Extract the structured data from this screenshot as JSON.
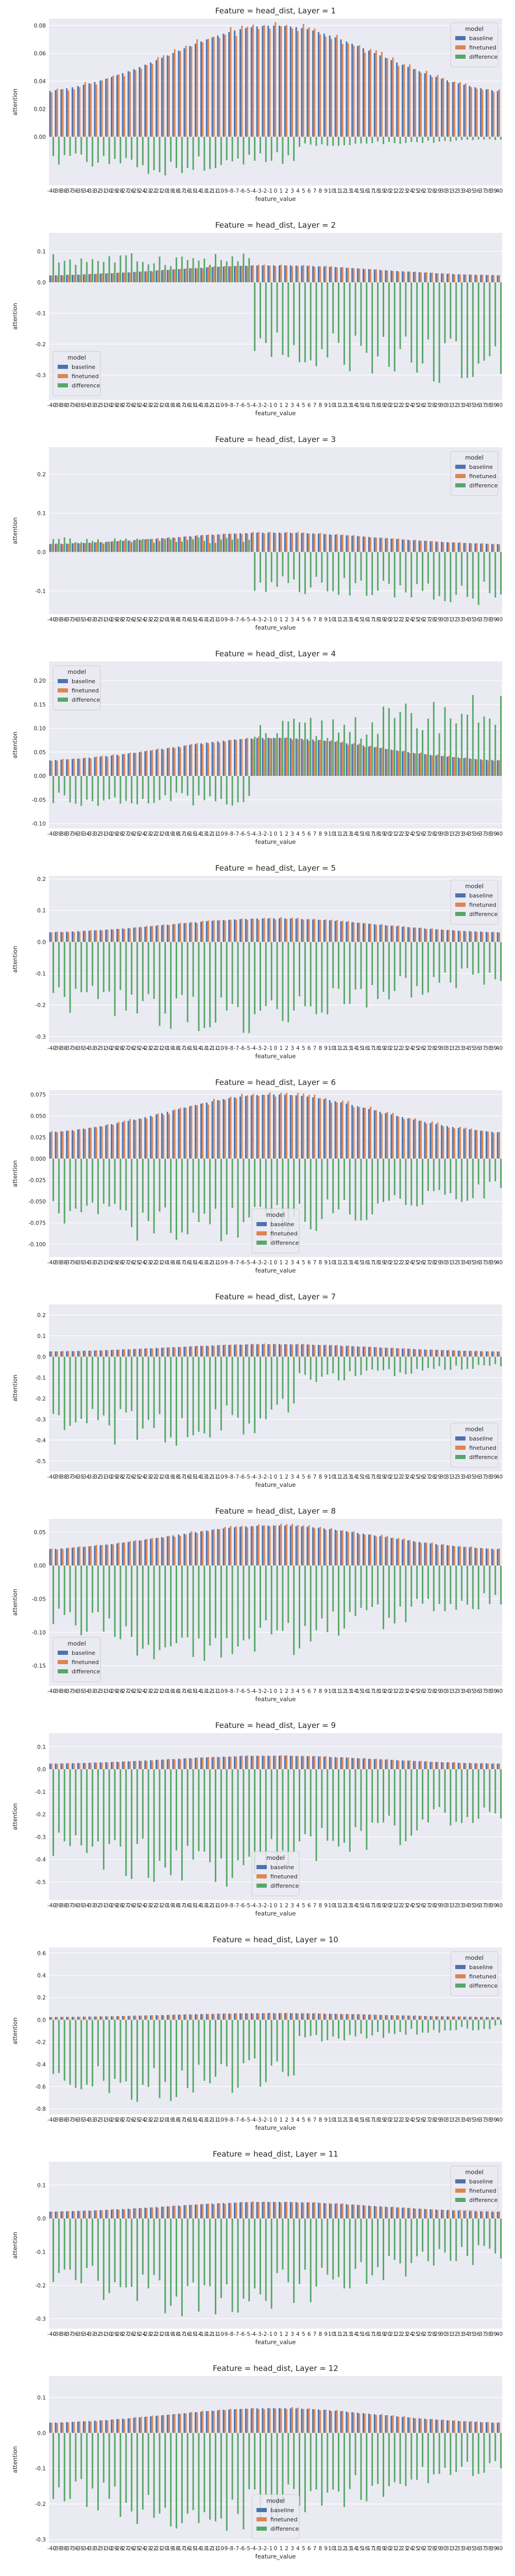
{
  "colors": {
    "background": "#eaeaf2",
    "grid": "#ffffff",
    "baseline": "#4c72b0",
    "finetuned": "#dd8452",
    "difference": "#55a868"
  },
  "chart_data": [
    {
      "type": "bar",
      "title": "Feature = head_dist, Layer = 1",
      "xlabel": "feature_value",
      "ylabel": "attention",
      "ylim": [
        -0.035,
        0.085
      ],
      "yticks": [
        0.0,
        0.02,
        0.04,
        0.06,
        0.08
      ],
      "ytick_labels": [
        "0.00",
        "0.02",
        "0.04",
        "0.06",
        "0.08"
      ],
      "legend_loc": "upper right",
      "peak": 0.08,
      "dip": -0.028,
      "diff_pattern": "negleft"
    },
    {
      "type": "bar",
      "title": "Feature = head_dist, Layer = 2",
      "xlabel": "feature_value",
      "ylabel": "attention",
      "ylim": [
        -0.38,
        0.16
      ],
      "yticks": [
        -0.3,
        -0.2,
        -0.1,
        0.0,
        0.1
      ],
      "ytick_labels": [
        "-0.3",
        "-0.2",
        "-0.1",
        "0.0",
        "0.1"
      ],
      "legend_loc": "lower left",
      "peak": 0.055,
      "dip": -0.35,
      "diff_pattern": "posleft_negright"
    },
    {
      "type": "bar",
      "title": "Feature = head_dist, Layer = 3",
      "xlabel": "feature_value",
      "ylabel": "attention",
      "ylim": [
        -0.16,
        0.27
      ],
      "yticks": [
        -0.1,
        0.0,
        0.1,
        0.2
      ],
      "ytick_labels": [
        "-0.1",
        "0.0",
        "0.1",
        "0.2"
      ],
      "legend_loc": "upper right",
      "peak": 0.05,
      "dip": -0.14,
      "diff_pattern": "posleft_negright"
    },
    {
      "type": "bar",
      "title": "Feature = head_dist, Layer = 4",
      "xlabel": "feature_value",
      "ylabel": "attention",
      "ylim": [
        -0.11,
        0.24
      ],
      "yticks": [
        -0.1,
        -0.05,
        0.0,
        0.05,
        0.1,
        0.15,
        0.2
      ],
      "ytick_labels": [
        "-0.10",
        "-0.05",
        "0.00",
        "0.05",
        "0.10",
        "0.15",
        "0.20"
      ],
      "legend_loc": "upper left",
      "peak": 0.08,
      "dip": -0.09,
      "diff_pattern": "negleft_posright"
    },
    {
      "type": "bar",
      "title": "Feature = head_dist, Layer = 5",
      "xlabel": "feature_value",
      "ylabel": "attention",
      "ylim": [
        -0.32,
        0.21
      ],
      "yticks": [
        -0.3,
        -0.2,
        -0.1,
        0.0,
        0.1,
        0.2
      ],
      "ytick_labels": [
        "-0.3",
        "-0.2",
        "-0.1",
        "0.0",
        "0.1",
        "0.2"
      ],
      "legend_loc": "upper right",
      "peak": 0.075,
      "dip": -0.3,
      "diff_pattern": "negall"
    },
    {
      "type": "bar",
      "title": "Feature = head_dist, Layer = 6",
      "xlabel": "feature_value",
      "ylabel": "attention",
      "ylim": [
        -0.115,
        0.08
      ],
      "yticks": [
        -0.1,
        -0.075,
        -0.05,
        -0.025,
        0.0,
        0.025,
        0.05,
        0.075
      ],
      "ytick_labels": [
        "-0.100",
        "-0.075",
        "-0.050",
        "-0.025",
        "0.000",
        "0.025",
        "0.050",
        "0.075"
      ],
      "legend_loc": "lower center",
      "peak": 0.075,
      "dip": -0.105,
      "diff_pattern": "negall"
    },
    {
      "type": "bar",
      "title": "Feature = head_dist, Layer = 7",
      "xlabel": "feature_value",
      "ylabel": "attention",
      "ylim": [
        -0.55,
        0.25
      ],
      "yticks": [
        -0.5,
        -0.4,
        -0.3,
        -0.2,
        -0.1,
        0.0,
        0.1,
        0.2
      ],
      "ytick_labels": [
        "-0.5",
        "-0.4",
        "-0.3",
        "-0.2",
        "-0.1",
        "0.0",
        "0.1",
        "0.2"
      ],
      "legend_loc": "lower right",
      "peak": 0.06,
      "dip": -0.5,
      "diff_pattern": "negleft"
    },
    {
      "type": "bar",
      "title": "Feature = head_dist, Layer = 8",
      "xlabel": "feature_value",
      "ylabel": "attention",
      "ylim": [
        -0.18,
        0.07
      ],
      "yticks": [
        -0.15,
        -0.1,
        -0.05,
        0.0,
        0.05
      ],
      "ytick_labels": [
        "-0.15",
        "-0.10",
        "-0.05",
        "0.00",
        "0.05"
      ],
      "legend_loc": "lower left",
      "peak": 0.06,
      "dip": -0.15,
      "diff_pattern": "negall"
    },
    {
      "type": "bar",
      "title": "Feature = head_dist, Layer = 9",
      "xlabel": "feature_value",
      "ylabel": "attention",
      "ylim": [
        -0.58,
        0.16
      ],
      "yticks": [
        -0.5,
        -0.4,
        -0.3,
        -0.2,
        -0.1,
        0.0,
        0.1
      ],
      "ytick_labels": [
        "-0.5",
        "-0.4",
        "-0.3",
        "-0.2",
        "-0.1",
        "0.0",
        "0.1"
      ],
      "legend_loc": "lower center",
      "peak": 0.06,
      "dip": -0.55,
      "diff_pattern": "negall"
    },
    {
      "type": "bar",
      "title": "Feature = head_dist, Layer = 10",
      "xlabel": "feature_value",
      "ylabel": "attention",
      "ylim": [
        -0.85,
        0.65
      ],
      "yticks": [
        -0.8,
        -0.6,
        -0.4,
        -0.2,
        0.0,
        0.2,
        0.4,
        0.6
      ],
      "ytick_labels": [
        "-0.8",
        "-0.6",
        "-0.4",
        "-0.2",
        "0.0",
        "0.2",
        "0.4",
        "0.6"
      ],
      "legend_loc": "upper right",
      "peak": 0.06,
      "dip": -0.8,
      "diff_pattern": "negleft"
    },
    {
      "type": "bar",
      "title": "Feature = head_dist, Layer = 11",
      "xlabel": "feature_value",
      "ylabel": "attention",
      "ylim": [
        -0.33,
        0.17
      ],
      "yticks": [
        -0.3,
        -0.2,
        -0.1,
        0.0,
        0.1
      ],
      "ytick_labels": [
        "-0.3",
        "-0.2",
        "-0.1",
        "0.0",
        "0.1"
      ],
      "legend_loc": "upper right",
      "peak": 0.05,
      "dip": -0.3,
      "diff_pattern": "negall"
    },
    {
      "type": "bar",
      "title": "Feature = head_dist, Layer = 12",
      "xlabel": "feature_value",
      "ylabel": "attention",
      "ylim": [
        -0.31,
        0.16
      ],
      "yticks": [
        -0.3,
        -0.2,
        -0.1,
        0.0,
        0.1
      ],
      "ytick_labels": [
        "-0.3",
        "-0.2",
        "-0.1",
        "0.0",
        "0.1"
      ],
      "legend_loc": "lower center",
      "peak": 0.07,
      "dip": -0.28,
      "diff_pattern": "negall"
    }
  ],
  "categories": [
    "-40",
    "-39",
    "-38",
    "-37",
    "-36",
    "-35",
    "-34",
    "-33",
    "-32",
    "-31",
    "-30",
    "-29",
    "-28",
    "-27",
    "-26",
    "-25",
    "-24",
    "-23",
    "-22",
    "-21",
    "-20",
    "-19",
    "-18",
    "-17",
    "-16",
    "-15",
    "-14",
    "-13",
    "-12",
    "-11",
    "-10",
    "-9",
    "-8",
    "-7",
    "-6",
    "-5",
    "-4",
    "-3",
    "-2",
    "-1",
    "0",
    "1",
    "2",
    "3",
    "4",
    "5",
    "6",
    "7",
    "8",
    "9",
    "10",
    "11",
    "12",
    "13",
    "14",
    "15",
    "16",
    "17",
    "18",
    "19",
    "20",
    "21",
    "22",
    "23",
    "24",
    "25",
    "26",
    "27",
    "28",
    "29",
    "30",
    "31",
    "32",
    "33",
    "34",
    "35",
    "36",
    "37",
    "38",
    "39",
    "40"
  ],
  "legend": {
    "title": "model",
    "entries": [
      "baseline",
      "finetuned",
      "difference"
    ]
  }
}
